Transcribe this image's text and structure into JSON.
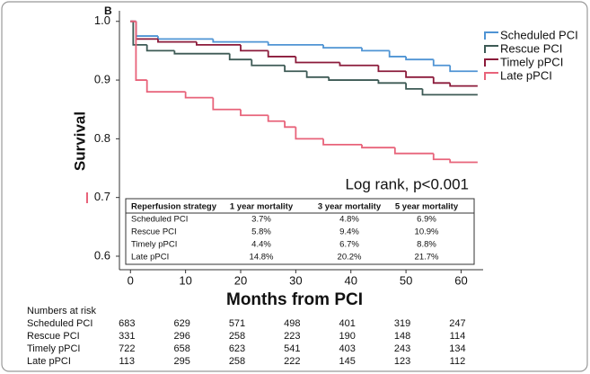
{
  "chart_data": {
    "type": "line",
    "panel_label": "B",
    "ylabel": "Survival",
    "xlabel": "Months from PCI",
    "annotation": "Log rank, p<0.001",
    "xlim": [
      -2,
      64
    ],
    "ylim": [
      0.577,
      1.018
    ],
    "xticks": [
      0,
      10,
      20,
      30,
      40,
      50,
      60
    ],
    "yticks": [
      0.6,
      0.7,
      0.8,
      0.9,
      {
        "value": 1,
        "label": "1.0"
      }
    ],
    "step": true,
    "series": [
      {
        "name": "Scheduled PCI",
        "color": "#4f94d4",
        "x": [
          0,
          1,
          5,
          15,
          25,
          35,
          42,
          47,
          50,
          55,
          58,
          63
        ],
        "values": [
          1,
          0.975,
          0.97,
          0.965,
          0.96,
          0.955,
          0.95,
          0.94,
          0.935,
          0.925,
          0.915,
          0.915
        ]
      },
      {
        "name": "Rescue PCI",
        "color": "#3d5a55",
        "x": [
          0,
          0.5,
          3,
          8,
          18,
          22,
          28,
          32,
          36,
          45,
          50,
          53,
          63
        ],
        "values": [
          1,
          0.96,
          0.95,
          0.945,
          0.935,
          0.925,
          0.915,
          0.905,
          0.9,
          0.895,
          0.885,
          0.875,
          0.875
        ]
      },
      {
        "name": "Timely pPCI",
        "color": "#8b1a3a",
        "x": [
          0,
          1,
          5,
          12,
          20,
          25,
          30,
          38,
          45,
          50,
          55,
          58,
          63
        ],
        "values": [
          1,
          0.97,
          0.965,
          0.96,
          0.95,
          0.94,
          0.93,
          0.925,
          0.915,
          0.905,
          0.895,
          0.89,
          0.89
        ]
      },
      {
        "name": "Late pPCI",
        "color": "#e8637a",
        "x": [
          0,
          1,
          3,
          10,
          15,
          20,
          25,
          28,
          30,
          35,
          42,
          48,
          55,
          58,
          63
        ],
        "values": [
          1,
          0.9,
          0.88,
          0.87,
          0.85,
          0.84,
          0.83,
          0.82,
          0.8,
          0.79,
          0.785,
          0.775,
          0.765,
          0.76,
          0.76
        ]
      }
    ],
    "table": {
      "header": [
        "Reperfusion strategy",
        "1 year mortality",
        "3 year mortality",
        "5 year mortality"
      ],
      "rows": [
        [
          "Scheduled PCI",
          "3.7%",
          "4.8%",
          "6.9%"
        ],
        [
          "Rescue PCI",
          "5.8%",
          "9.4%",
          "10.9%"
        ],
        [
          "Timely pPCI",
          "4.4%",
          "6.7%",
          "8.8%"
        ],
        [
          "Late pPCI",
          "14.8%",
          "20.2%",
          "21.7%"
        ]
      ]
    },
    "risk_table": {
      "title": "Numbers at risk",
      "rows": [
        {
          "name": "Scheduled PCI",
          "values": [
            683,
            629,
            571,
            498,
            401,
            319,
            247
          ]
        },
        {
          "name": "Rescue PCI",
          "values": [
            331,
            296,
            258,
            223,
            190,
            148,
            114
          ]
        },
        {
          "name": "Timely pPCI",
          "values": [
            722,
            658,
            623,
            541,
            403,
            243,
            134
          ]
        },
        {
          "name": "Late pPCI",
          "values": [
            113,
            295,
            258,
            222,
            145,
            123,
            112
          ]
        }
      ]
    }
  }
}
